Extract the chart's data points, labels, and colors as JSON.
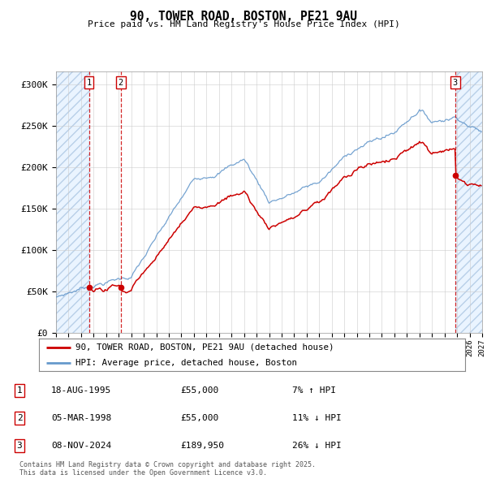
{
  "title": "90, TOWER ROAD, BOSTON, PE21 9AU",
  "subtitle": "Price paid vs. HM Land Registry's House Price Index (HPI)",
  "ylabel_ticks": [
    "£0",
    "£50K",
    "£100K",
    "£150K",
    "£200K",
    "£250K",
    "£300K"
  ],
  "ytick_values": [
    0,
    50000,
    100000,
    150000,
    200000,
    250000,
    300000
  ],
  "ylim": [
    0,
    315000
  ],
  "xlim_start": 1993.0,
  "xlim_end": 2027.0,
  "sale_dates": [
    1995.63,
    1998.17,
    2024.85
  ],
  "sale_prices": [
    55000,
    55000,
    189950
  ],
  "sale_labels": [
    "1",
    "2",
    "3"
  ],
  "legend_label_red": "90, TOWER ROAD, BOSTON, PE21 9AU (detached house)",
  "legend_label_blue": "HPI: Average price, detached house, Boston",
  "table_data": [
    [
      "1",
      "18-AUG-1995",
      "£55,000",
      "7% ↑ HPI"
    ],
    [
      "2",
      "05-MAR-1998",
      "£55,000",
      "11% ↓ HPI"
    ],
    [
      "3",
      "08-NOV-2024",
      "£189,950",
      "26% ↓ HPI"
    ]
  ],
  "footer": "Contains HM Land Registry data © Crown copyright and database right 2025.\nThis data is licensed under the Open Government Licence v3.0.",
  "red_color": "#cc0000",
  "blue_color": "#6699cc",
  "background_color": "#ffffff"
}
